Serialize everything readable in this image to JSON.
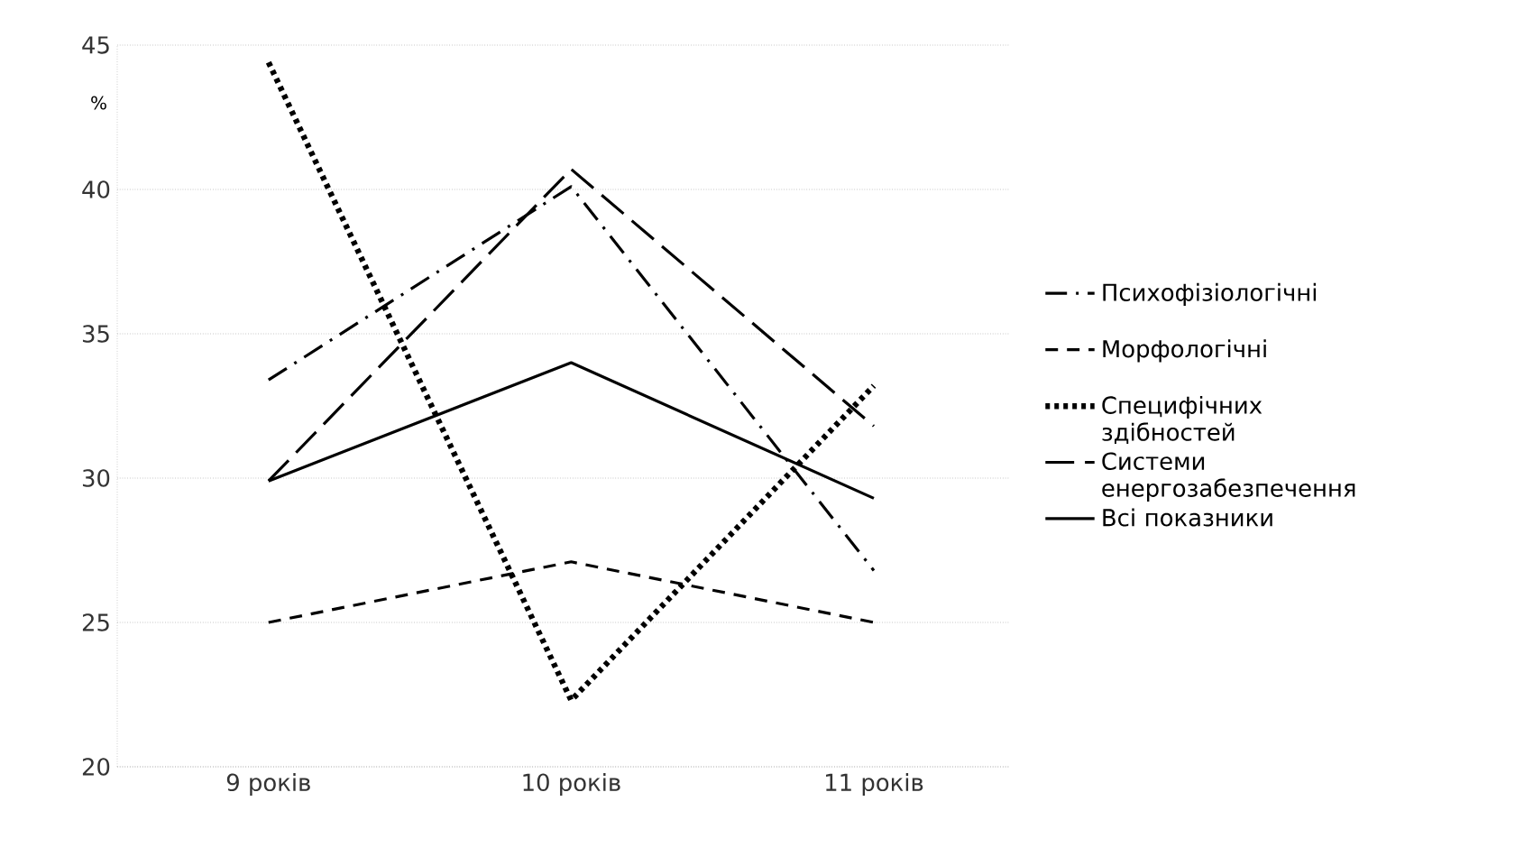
{
  "chart_data": {
    "type": "line",
    "ylabel": "%",
    "categories": [
      "9 років",
      "10 років",
      "11 років"
    ],
    "series": [
      {
        "name": "Психофізіологічні",
        "color": "#000000",
        "line_style": "dashdot",
        "values": [
          33.4,
          40.1,
          26.8
        ]
      },
      {
        "name": "Морфологічні",
        "color": "#000000",
        "line_style": "dashed",
        "values": [
          25.0,
          27.1,
          25.0
        ]
      },
      {
        "name": "Специфічних здібностей",
        "color": "#000000",
        "line_style": "dotted",
        "values": [
          44.4,
          22.3,
          33.2
        ]
      },
      {
        "name": "Системи енергозабезпечення",
        "color": "#000000",
        "line_style": "longdash",
        "values": [
          29.9,
          40.7,
          31.8
        ]
      },
      {
        "name": "Всі показники",
        "color": "#000000",
        "line_style": "solid",
        "values": [
          29.9,
          34.0,
          29.3
        ]
      }
    ],
    "ylim": [
      20,
      45
    ],
    "yticks": [
      20,
      25,
      30,
      35,
      40,
      45
    ],
    "grid": "y",
    "legend": "right"
  }
}
